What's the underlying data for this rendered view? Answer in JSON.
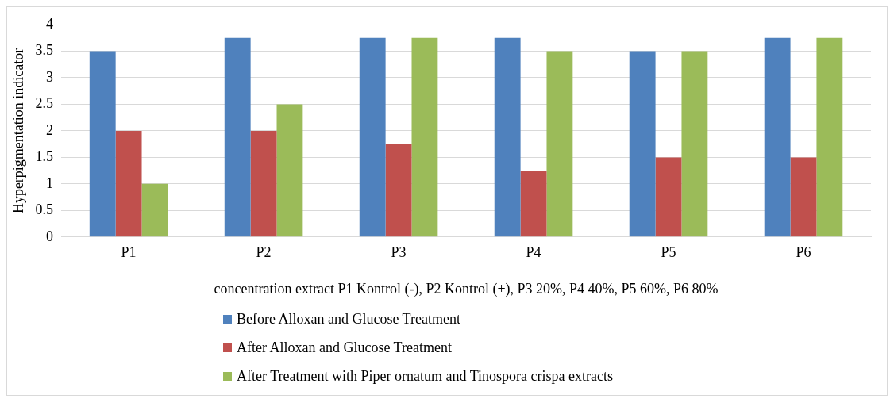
{
  "chart_data": {
    "type": "bar",
    "ylabel": "Hyperpigmentation indicator",
    "xlabel": "concentration extract P1 Kontrol (-), P2 Kontrol (+), P3 20%, P4 40%, P5 60%, P6 80%",
    "categories": [
      "P1",
      "P2",
      "P3",
      "P4",
      "P5",
      "P6"
    ],
    "series": [
      {
        "name": "Before Alloxan and Glucose Treatment",
        "color": "#4f81bd",
        "values": [
          3.5,
          3.75,
          3.75,
          3.75,
          3.5,
          3.75
        ]
      },
      {
        "name": "After Alloxan and Glucose Treatment",
        "color": "#c0504d",
        "values": [
          2,
          2,
          1.75,
          1.25,
          1.5,
          1.5
        ]
      },
      {
        "name": "After Treatment with Piper ornatum and Tinospora crispa extracts",
        "color": "#9bbb59",
        "values": [
          1,
          2.5,
          3.75,
          3.5,
          3.5,
          3.75
        ]
      }
    ],
    "ylim": [
      0,
      4
    ],
    "yticks": [
      0,
      0.5,
      1,
      1.5,
      2,
      2.5,
      3,
      3.5,
      4
    ],
    "grid": "y",
    "legend": "bottom"
  }
}
